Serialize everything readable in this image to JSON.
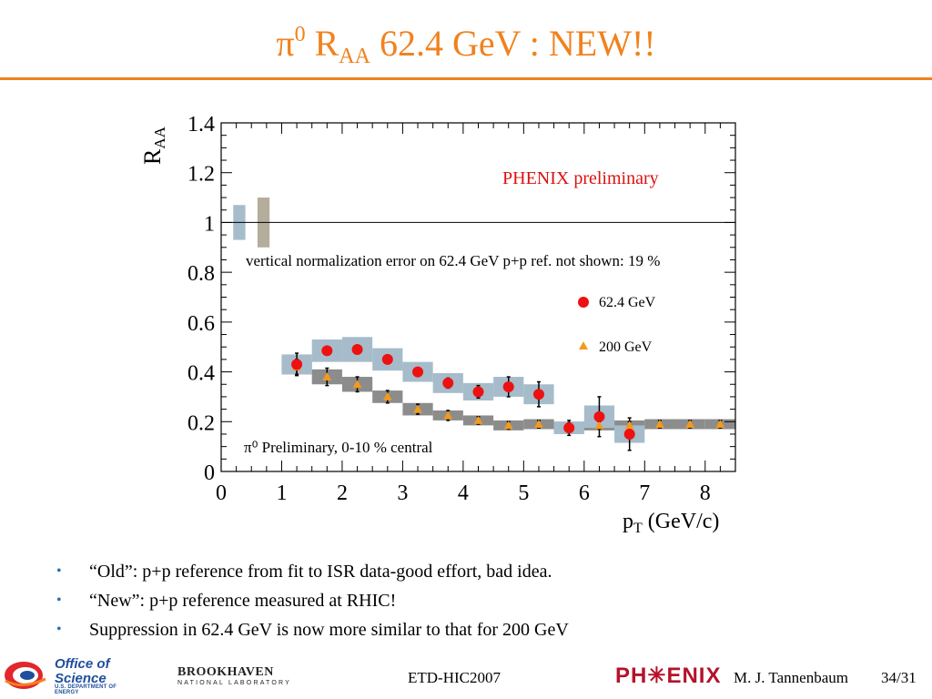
{
  "slide": {
    "title_pre": "π",
    "title_sup": "0",
    "title_r": " R",
    "title_sub": "AA",
    "title_post": " 62.4 GeV : NEW!!"
  },
  "bullets": [
    "“Old”: p+p reference from fit to ISR data-good effort, bad idea.",
    "“New”: p+p reference measured at RHIC!",
    "Suppression in 62.4 GeV is now more similar to that for 200 GeV"
  ],
  "footer": {
    "office_line1": "Office of",
    "office_line2": "Science",
    "office_line3": "U.S. DEPARTMENT OF ENERGY",
    "bnl_line1": "BROOKHAVEN",
    "bnl_line2": "NATIONAL LABORATORY",
    "conference": "ETD-HIC2007",
    "phenix_logo": "PH✳ENIX",
    "author": "M. J. Tannenbaum",
    "page": "34/31"
  },
  "colors": {
    "title": "#f0821e",
    "series_62": "#ee1111",
    "series_200": "#f39a1c",
    "band_62": "#a6bccb",
    "band_200": "#8c8c8c",
    "norm_box_blue": "#a6bccb",
    "norm_box_tan": "#b5ad9b",
    "annotation_red": "#dd1111"
  },
  "chart_data": {
    "type": "scatter",
    "xlabel": "p_T (GeV/c)",
    "ylabel": "R_AA",
    "xlim": [
      0,
      8.5
    ],
    "ylim": [
      0,
      1.4
    ],
    "xticks": [
      0,
      1,
      2,
      3,
      4,
      5,
      6,
      7,
      8
    ],
    "yticks": [
      "0",
      "0.2",
      "0.4",
      "0.6",
      "0.8",
      "1",
      "1.2",
      "1.4"
    ],
    "reference_line": 1,
    "annotations": {
      "preliminary": "PHENIX preliminary",
      "norm_note": "vertical normalization error on 62.4 GeV p+p ref. not shown: 19 %",
      "centrality": "π⁰ Preliminary, 0-10 % central"
    },
    "normalization_boxes": [
      {
        "x": [
          0.2,
          0.4
        ],
        "y": [
          0.93,
          1.07
        ],
        "color": "blue"
      },
      {
        "x": [
          0.6,
          0.8
        ],
        "y": [
          0.9,
          1.1
        ],
        "color": "tan"
      }
    ],
    "series": [
      {
        "name": "62.4 GeV",
        "marker": "circle",
        "x": [
          1.25,
          1.75,
          2.25,
          2.75,
          3.25,
          3.75,
          4.25,
          4.75,
          5.25,
          5.75,
          6.25,
          6.75
        ],
        "y": [
          0.43,
          0.485,
          0.49,
          0.45,
          0.4,
          0.355,
          0.32,
          0.34,
          0.31,
          0.175,
          0.22,
          0.15
        ],
        "err": [
          0.045,
          0.015,
          0.015,
          0.015,
          0.015,
          0.02,
          0.025,
          0.04,
          0.05,
          0.03,
          0.08,
          0.065
        ],
        "sys": [
          0.04,
          0.045,
          0.05,
          0.045,
          0.04,
          0.04,
          0.035,
          0.04,
          0.04,
          0.025,
          0.045,
          0.035
        ]
      },
      {
        "name": "200 GeV",
        "marker": "triangle",
        "x": [
          1.25,
          1.75,
          2.25,
          2.75,
          3.25,
          3.75,
          4.25,
          4.75,
          5.25,
          5.75,
          6.25,
          6.75,
          7.25,
          7.75,
          8.25
        ],
        "y": [
          0.42,
          0.38,
          0.35,
          0.3,
          0.25,
          0.225,
          0.205,
          0.185,
          0.19,
          0.18,
          0.185,
          0.185,
          0.19,
          0.19,
          0.19
        ],
        "err": [
          0.03,
          0.035,
          0.03,
          0.025,
          0.02,
          0.02,
          0.015,
          0.015,
          0.015,
          0.015,
          0.015,
          0.015,
          0.015,
          0.015,
          0.015
        ],
        "sys": [
          0.03,
          0.03,
          0.03,
          0.025,
          0.025,
          0.02,
          0.02,
          0.02,
          0.02,
          0.02,
          0.02,
          0.02,
          0.02,
          0.02,
          0.02
        ]
      }
    ]
  }
}
